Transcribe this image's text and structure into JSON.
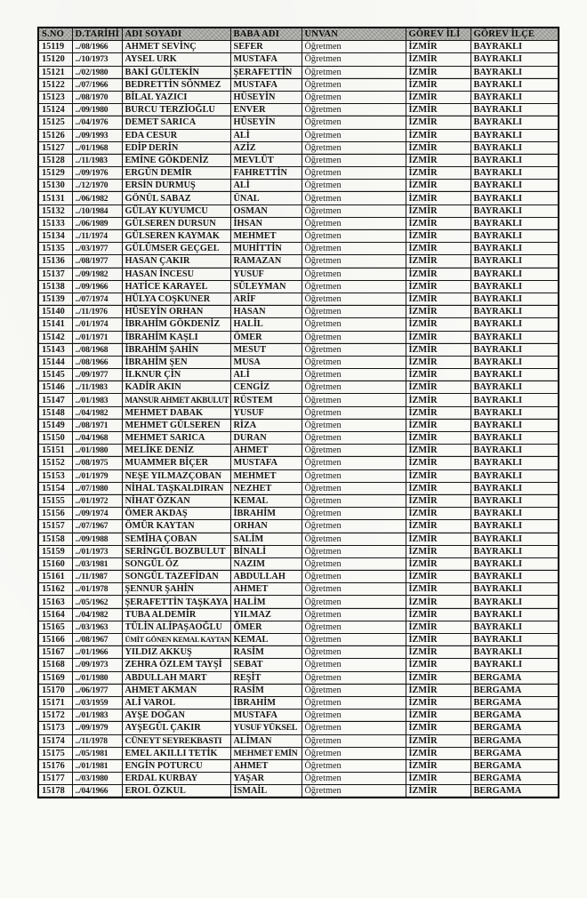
{
  "colors": {
    "paper": "#f9f9f6",
    "ink": "#161616",
    "header_bg": "#a6a6a2",
    "border": "#141414"
  },
  "table": {
    "headers": [
      "S.NO",
      "D.TARİHİ",
      "ADI SOYADI",
      "BABA ADI",
      "UNVAN",
      "GÖREV İLİ",
      "GÖREV İLÇE"
    ],
    "rows": [
      [
        "15119",
        "../08/1966",
        "AHMET SEVİNÇ",
        "SEFER",
        "Öğretmen",
        "İZMİR",
        "BAYRAKLI"
      ],
      [
        "15120",
        "../10/1973",
        "AYSEL URK",
        "MUSTAFA",
        "Öğretmen",
        "İZMİR",
        "BAYRAKLI"
      ],
      [
        "15121",
        "../02/1980",
        "BAKİ GÜLTEKİN",
        "ŞERAFETTİN",
        "Öğretmen",
        "İZMİR",
        "BAYRAKLI"
      ],
      [
        "15122",
        "../07/1966",
        "BEDRETTİN SÖNMEZ",
        "MUSTAFA",
        "Öğretmen",
        "İZMİR",
        "BAYRAKLI"
      ],
      [
        "15123",
        "../08/1970",
        "BİLAL YAZICI",
        "HÜSEYİN",
        "Öğretmen",
        "İZMİR",
        "BAYRAKLI"
      ],
      [
        "15124",
        "../09/1980",
        "BURCU TERZİOĞLU",
        "ENVER",
        "Öğretmen",
        "İZMİR",
        "BAYRAKLI"
      ],
      [
        "15125",
        "../04/1976",
        "DEMET SARICA",
        "HÜSEYİN",
        "Öğretmen",
        "İZMİR",
        "BAYRAKLI"
      ],
      [
        "15126",
        "../09/1993",
        "EDA CESUR",
        "ALİ",
        "Öğretmen",
        "İZMİR",
        "BAYRAKLI"
      ],
      [
        "15127",
        "../01/1968",
        "EDİP DERİN",
        "AZİZ",
        "Öğretmen",
        "İZMİR",
        "BAYRAKLI"
      ],
      [
        "15128",
        "../11/1983",
        "EMİNE GÖKDENİZ",
        "MEVLÜT",
        "Öğretmen",
        "İZMİR",
        "BAYRAKLI"
      ],
      [
        "15129",
        "../09/1976",
        "ERGÜN DEMİR",
        "FAHRETTİN",
        "Öğretmen",
        "İZMİR",
        "BAYRAKLI"
      ],
      [
        "15130",
        "../12/1970",
        "ERSİN DURMUŞ",
        "ALİ",
        "Öğretmen",
        "İZMİR",
        "BAYRAKLI"
      ],
      [
        "15131",
        "../06/1982",
        "GÖNÜL SABAZ",
        "ÜNAL",
        "Öğretmen",
        "İZMİR",
        "BAYRAKLI"
      ],
      [
        "15132",
        "../10/1984",
        "GÜLAY KUYUMCU",
        "OSMAN",
        "Öğretmen",
        "İZMİR",
        "BAYRAKLI"
      ],
      [
        "15133",
        "../06/1989",
        "GÜLSEREN DURSUN",
        "İHSAN",
        "Öğretmen",
        "İZMİR",
        "BAYRAKLI"
      ],
      [
        "15134",
        "../11/1974",
        "GÜLSEREN KAYMAK",
        "MEHMET",
        "Öğretmen",
        "İZMİR",
        "BAYRAKLI"
      ],
      [
        "15135",
        "../03/1977",
        "GÜLÜMSER GEÇGEL",
        "MUHİTTİN",
        "Öğretmen",
        "İZMİR",
        "BAYRAKLI"
      ],
      [
        "15136",
        "../08/1977",
        "HASAN ÇAKIR",
        "RAMAZAN",
        "Öğretmen",
        "İZMİR",
        "BAYRAKLI"
      ],
      [
        "15137",
        "../09/1982",
        "HASAN İNCESU",
        "YUSUF",
        "Öğretmen",
        "İZMİR",
        "BAYRAKLI"
      ],
      [
        "15138",
        "../09/1966",
        "HATİCE KARAYEL",
        "SÜLEYMAN",
        "Öğretmen",
        "İZMİR",
        "BAYRAKLI"
      ],
      [
        "15139",
        "../07/1974",
        "HÜLYA COŞKUNER",
        "ARİF",
        "Öğretmen",
        "İZMİR",
        "BAYRAKLI"
      ],
      [
        "15140",
        "../11/1976",
        "HÜSEYİN ORHAN",
        "HASAN",
        "Öğretmen",
        "İZMİR",
        "BAYRAKLI"
      ],
      [
        "15141",
        "../01/1974",
        "İBRAHİM GÖKDENİZ",
        "HALİL",
        "Öğretmen",
        "İZMİR",
        "BAYRAKLI"
      ],
      [
        "15142",
        "../01/1971",
        "İBRAHİM KAŞLI",
        "ÖMER",
        "Öğretmen",
        "İZMİR",
        "BAYRAKLI"
      ],
      [
        "15143",
        "../08/1968",
        "İBRAHİM ŞAHİN",
        "MESUT",
        "Öğretmen",
        "İZMİR",
        "BAYRAKLI"
      ],
      [
        "15144",
        "../08/1966",
        "İBRAHİM ŞEN",
        "MUSA",
        "Öğretmen",
        "İZMİR",
        "BAYRAKLI"
      ],
      [
        "15145",
        "../09/1977",
        "İLKNUR ÇİN",
        "ALİ",
        "Öğretmen",
        "İZMİR",
        "BAYRAKLI"
      ],
      [
        "15146",
        "../11/1983",
        "KADİR AKIN",
        "CENGİZ",
        "Öğretmen",
        "İZMİR",
        "BAYRAKLI"
      ],
      [
        "15147",
        "../01/1983",
        "MANSUR AHMET AKBULUT",
        "RÜSTEM",
        "Öğretmen",
        "İZMİR",
        "BAYRAKLI"
      ],
      [
        "15148",
        "../04/1982",
        "MEHMET DABAK",
        "YUSUF",
        "Öğretmen",
        "İZMİR",
        "BAYRAKLI"
      ],
      [
        "15149",
        "../08/1971",
        "MEHMET GÜLSEREN",
        "RİZA",
        "Öğretmen",
        "İZMİR",
        "BAYRAKLI"
      ],
      [
        "15150",
        "../04/1968",
        "MEHMET SARICA",
        "DURAN",
        "Öğretmen",
        "İZMİR",
        "BAYRAKLI"
      ],
      [
        "15151",
        "../01/1980",
        "MELİKE DENİZ",
        "AHMET",
        "Öğretmen",
        "İZMİR",
        "BAYRAKLI"
      ],
      [
        "15152",
        "../08/1975",
        "MUAMMER BİÇER",
        "MUSTAFA",
        "Öğretmen",
        "İZMİR",
        "BAYRAKLI"
      ],
      [
        "15153",
        "../01/1979",
        "NEŞE YILMAZÇOBAN",
        "MEHMET",
        "Öğretmen",
        "İZMİR",
        "BAYRAKLI"
      ],
      [
        "15154",
        "../07/1980",
        "NİHAL TAŞKALDIRAN",
        "NEZHET",
        "Öğretmen",
        "İZMİR",
        "BAYRAKLI"
      ],
      [
        "15155",
        "../01/1972",
        "NİHAT ÖZKAN",
        "KEMAL",
        "Öğretmen",
        "İZMİR",
        "BAYRAKLI"
      ],
      [
        "15156",
        "../09/1974",
        "ÖMER AKDAŞ",
        "İBRAHİM",
        "Öğretmen",
        "İZMİR",
        "BAYRAKLI"
      ],
      [
        "15157",
        "../07/1967",
        "ÖMÜR KAYTAN",
        "ORHAN",
        "Öğretmen",
        "İZMİR",
        "BAYRAKLI"
      ],
      [
        "15158",
        "../09/1988",
        "SEMİHA ÇOBAN",
        "SALİM",
        "Öğretmen",
        "İZMİR",
        "BAYRAKLI"
      ],
      [
        "15159",
        "../01/1973",
        "SERİNGÜL BOZBULUT",
        "BİNALİ",
        "Öğretmen",
        "İZMİR",
        "BAYRAKLI"
      ],
      [
        "15160",
        "../03/1981",
        "SONGÜL ÖZ",
        "NAZIM",
        "Öğretmen",
        "İZMİR",
        "BAYRAKLI"
      ],
      [
        "15161",
        "../11/1987",
        "SONGÜL TAZEFİDAN",
        "ABDULLAH",
        "Öğretmen",
        "İZMİR",
        "BAYRAKLI"
      ],
      [
        "15162",
        "../01/1978",
        "ŞENNUR ŞAHİN",
        "AHMET",
        "Öğretmen",
        "İZMİR",
        "BAYRAKLI"
      ],
      [
        "15163",
        "../05/1962",
        "ŞERAFETTİN TAŞKAYA",
        "HALİM",
        "Öğretmen",
        "İZMİR",
        "BAYRAKLI"
      ],
      [
        "15164",
        "../04/1982",
        "TUBA ALDEMİR",
        "YILMAZ",
        "Öğretmen",
        "İZMİR",
        "BAYRAKLI"
      ],
      [
        "15165",
        "../03/1963",
        "TÜLİN ALİPAŞAOĞLU",
        "ÖMER",
        "Öğretmen",
        "İZMİR",
        "BAYRAKLI"
      ],
      [
        "15166",
        "../08/1967",
        "ÜMİT GÖNEN KEMAL KAYTAN",
        "KEMAL",
        "Öğretmen",
        "İZMİR",
        "BAYRAKLI"
      ],
      [
        "15167",
        "../01/1966",
        "YILDIZ AKKUŞ",
        "RASİM",
        "Öğretmen",
        "İZMİR",
        "BAYRAKLI"
      ],
      [
        "15168",
        "../09/1973",
        "ZEHRA ÖZLEM TAYŞİ",
        "SEBAT",
        "Öğretmen",
        "İZMİR",
        "BAYRAKLI"
      ],
      [
        "15169",
        "../01/1980",
        "ABDULLAH MART",
        "REŞİT",
        "Öğretmen",
        "İZMİR",
        "BERGAMA"
      ],
      [
        "15170",
        "../06/1977",
        "AHMET AKMAN",
        "RASİM",
        "Öğretmen",
        "İZMİR",
        "BERGAMA"
      ],
      [
        "15171",
        "../03/1959",
        "ALİ VAROL",
        "İBRAHİM",
        "Öğretmen",
        "İZMİR",
        "BERGAMA"
      ],
      [
        "15172",
        "../01/1983",
        "AYŞE DOĞAN",
        "MUSTAFA",
        "Öğretmen",
        "İZMİR",
        "BERGAMA"
      ],
      [
        "15173",
        "../09/1979",
        "AYŞEGÜL ÇAKIR",
        "YUSUF YÜKSEL",
        "Öğretmen",
        "İZMİR",
        "BERGAMA"
      ],
      [
        "15174",
        "../11/1978",
        "CÜNEYT SEYREKBASTI",
        "ALİMAN",
        "Öğretmen",
        "İZMİR",
        "BERGAMA"
      ],
      [
        "15175",
        "../05/1981",
        "EMEL AKILLI TETİK",
        "MEHMET EMİN",
        "Öğretmen",
        "İZMİR",
        "BERGAMA"
      ],
      [
        "15176",
        "../01/1981",
        "ENGİN POTURCU",
        "AHMET",
        "Öğretmen",
        "İZMİR",
        "BERGAMA"
      ],
      [
        "15177",
        "../03/1980",
        "ERDAL KURBAY",
        "YAŞAR",
        "Öğretmen",
        "İZMİR",
        "BERGAMA"
      ],
      [
        "15178",
        "../04/1966",
        "EROL ÖZKUL",
        "İSMAİL",
        "Öğretmen",
        "İZMİR",
        "BERGAMA"
      ]
    ]
  }
}
